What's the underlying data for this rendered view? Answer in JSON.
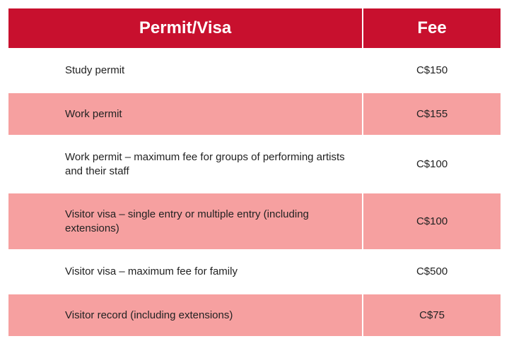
{
  "table": {
    "header_bg": "#c8102e",
    "header_color": "#ffffff",
    "row_alt_bg": "#f6a0a0",
    "row_bg": "#ffffff",
    "text_color": "#222222",
    "header_fontsize": 24,
    "cell_fontsize": 15,
    "columns": [
      {
        "label": "Permit/Visa",
        "width_pct": 72,
        "align": "left"
      },
      {
        "label": "Fee",
        "width_pct": 28,
        "align": "center"
      }
    ],
    "rows": [
      {
        "permit": "Study permit",
        "fee": "C$150"
      },
      {
        "permit": "Work permit",
        "fee": "C$155"
      },
      {
        "permit": "Work permit – maximum fee for groups of performing artists and their staff",
        "fee": "C$100"
      },
      {
        "permit": "Visitor visa – single entry or multiple entry (including extensions)",
        "fee": "C$100"
      },
      {
        "permit": "Visitor visa – maximum fee for family",
        "fee": "C$500"
      },
      {
        "permit": "Visitor record (including extensions)",
        "fee": "C$75"
      }
    ]
  }
}
